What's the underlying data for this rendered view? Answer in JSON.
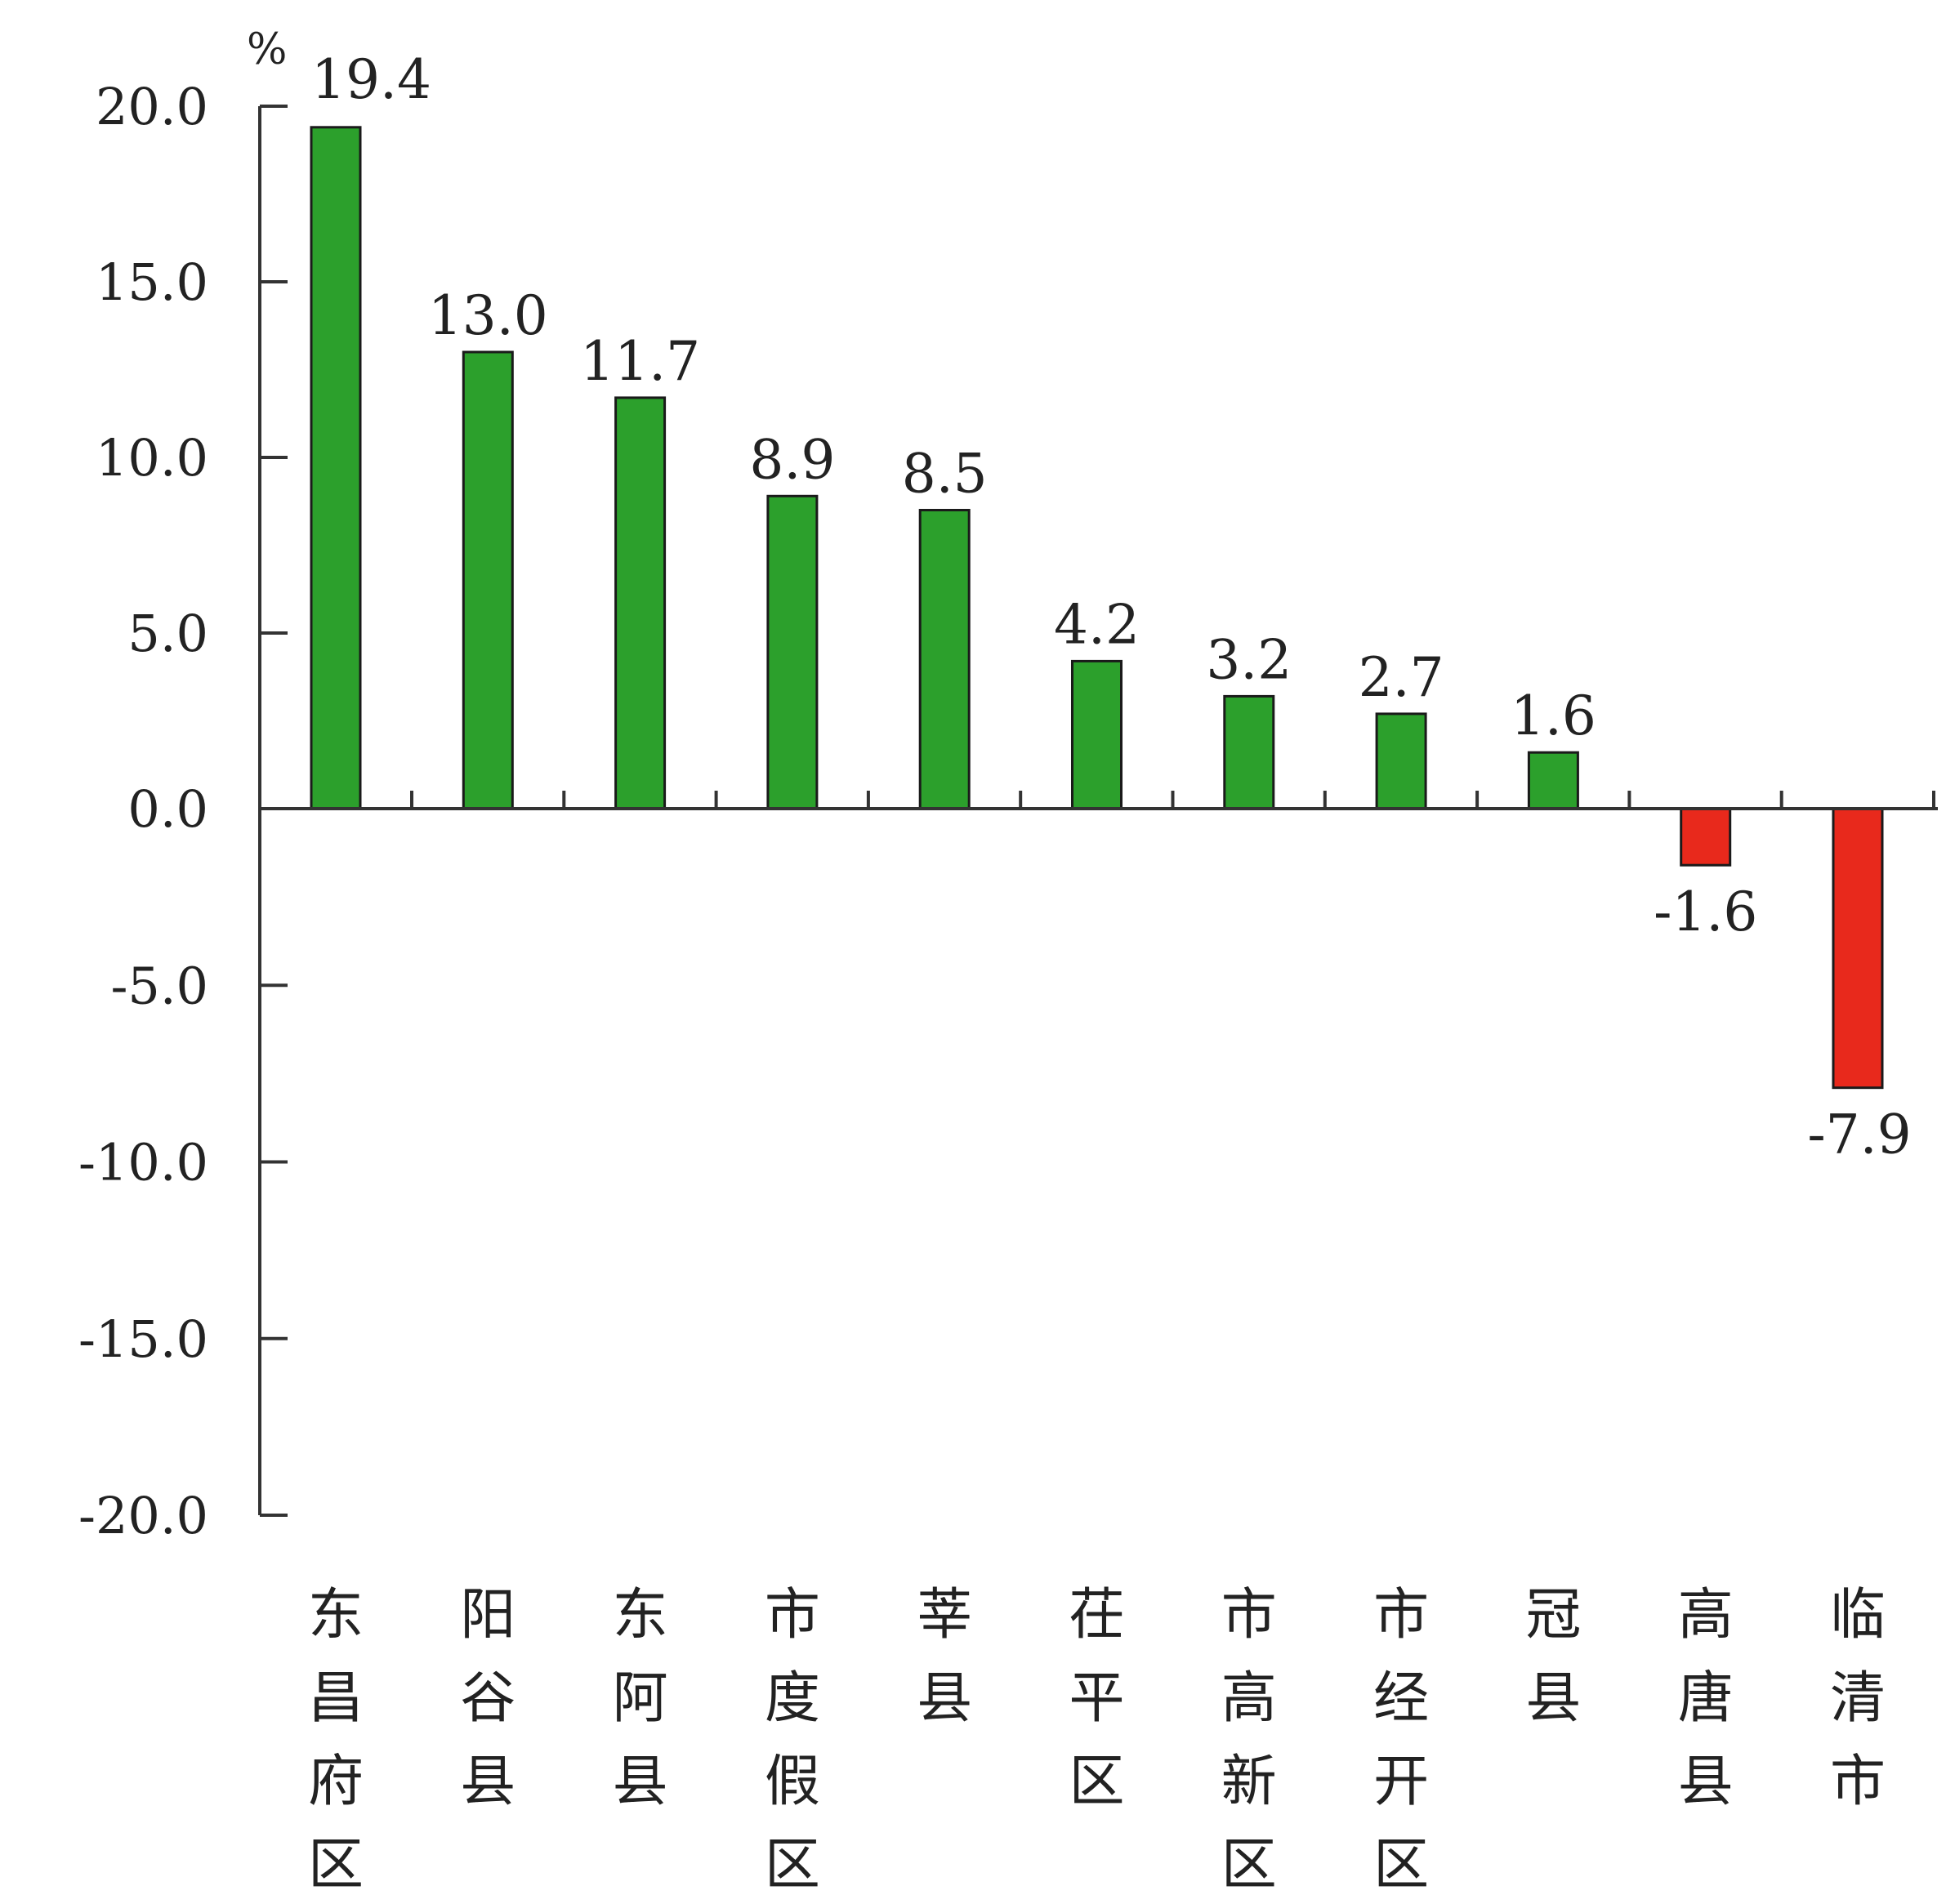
{
  "chart_data": {
    "type": "bar",
    "unit": "%",
    "categories": [
      "东昌府区",
      "阳谷县",
      "东阿县",
      "市度假区",
      "莘县",
      "茌平区",
      "市高新区",
      "市经开区",
      "冠县",
      "高唐县",
      "临清市"
    ],
    "values": [
      19.4,
      13.0,
      11.7,
      8.9,
      8.5,
      4.2,
      3.2,
      2.7,
      1.6,
      -1.6,
      -7.9
    ],
    "value_labels": [
      "19.4",
      "13.0",
      "11.7",
      "8.9",
      "8.5",
      "4.2",
      "3.2",
      "2.7",
      "1.6",
      "-1.6",
      "-7.9"
    ],
    "ylim": [
      -20,
      20
    ],
    "yticks": [
      20,
      15,
      10,
      5,
      0,
      -5,
      -10,
      -15,
      -20
    ],
    "ytick_labels": [
      "20.0",
      "15.0",
      "10.0",
      "5.0",
      "0.0",
      "-5.0",
      "-10.0",
      "-15.0",
      "-20.0"
    ],
    "title": "",
    "xlabel": "",
    "ylabel": "%",
    "grid": false,
    "legend": "none",
    "colors": {
      "positive": "#2ca02c",
      "negative": "#e8291c",
      "axis": "#333333",
      "text": "#222222"
    }
  }
}
